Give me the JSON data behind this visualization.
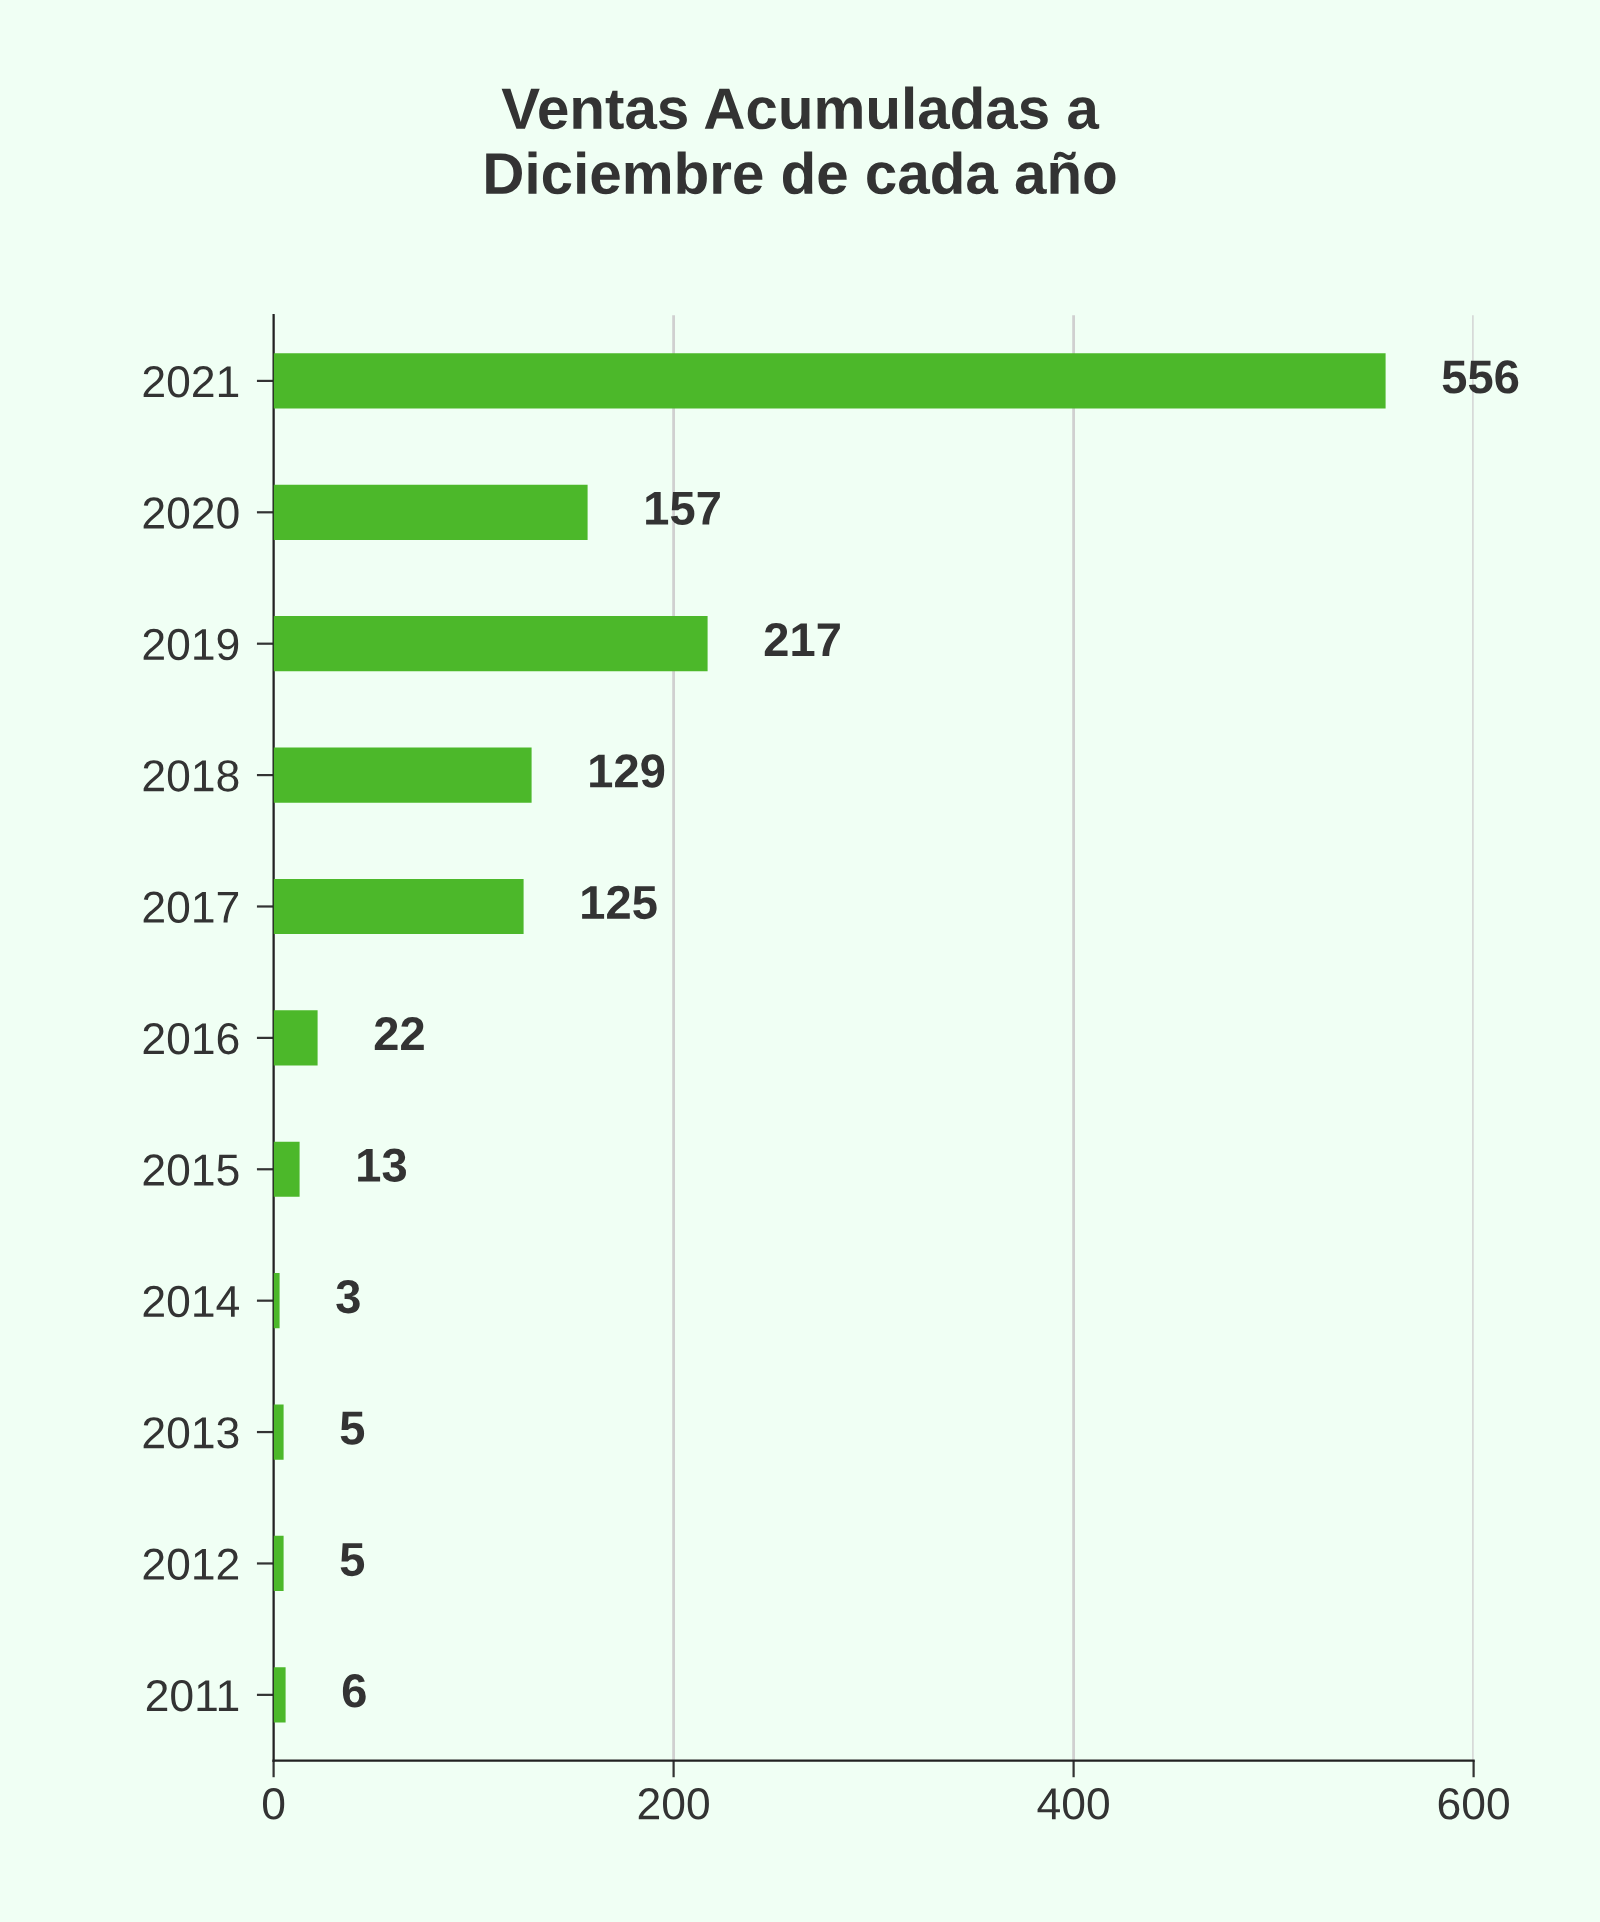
{
  "chart_data": {
    "type": "bar",
    "orientation": "horizontal",
    "title": "Ventas Acumuladas a\nDiciembre de cada año",
    "categories": [
      "2021",
      "2020",
      "2019",
      "2018",
      "2017",
      "2016",
      "2015",
      "2014",
      "2013",
      "2012",
      "2011"
    ],
    "values": [
      556,
      157,
      217,
      129,
      125,
      22,
      13,
      3,
      5,
      5,
      6
    ],
    "color": "#4cb82a",
    "xlim": [
      0,
      600
    ],
    "xticks": [
      0,
      200,
      400,
      600
    ],
    "grid": "x",
    "data_labels": true
  }
}
